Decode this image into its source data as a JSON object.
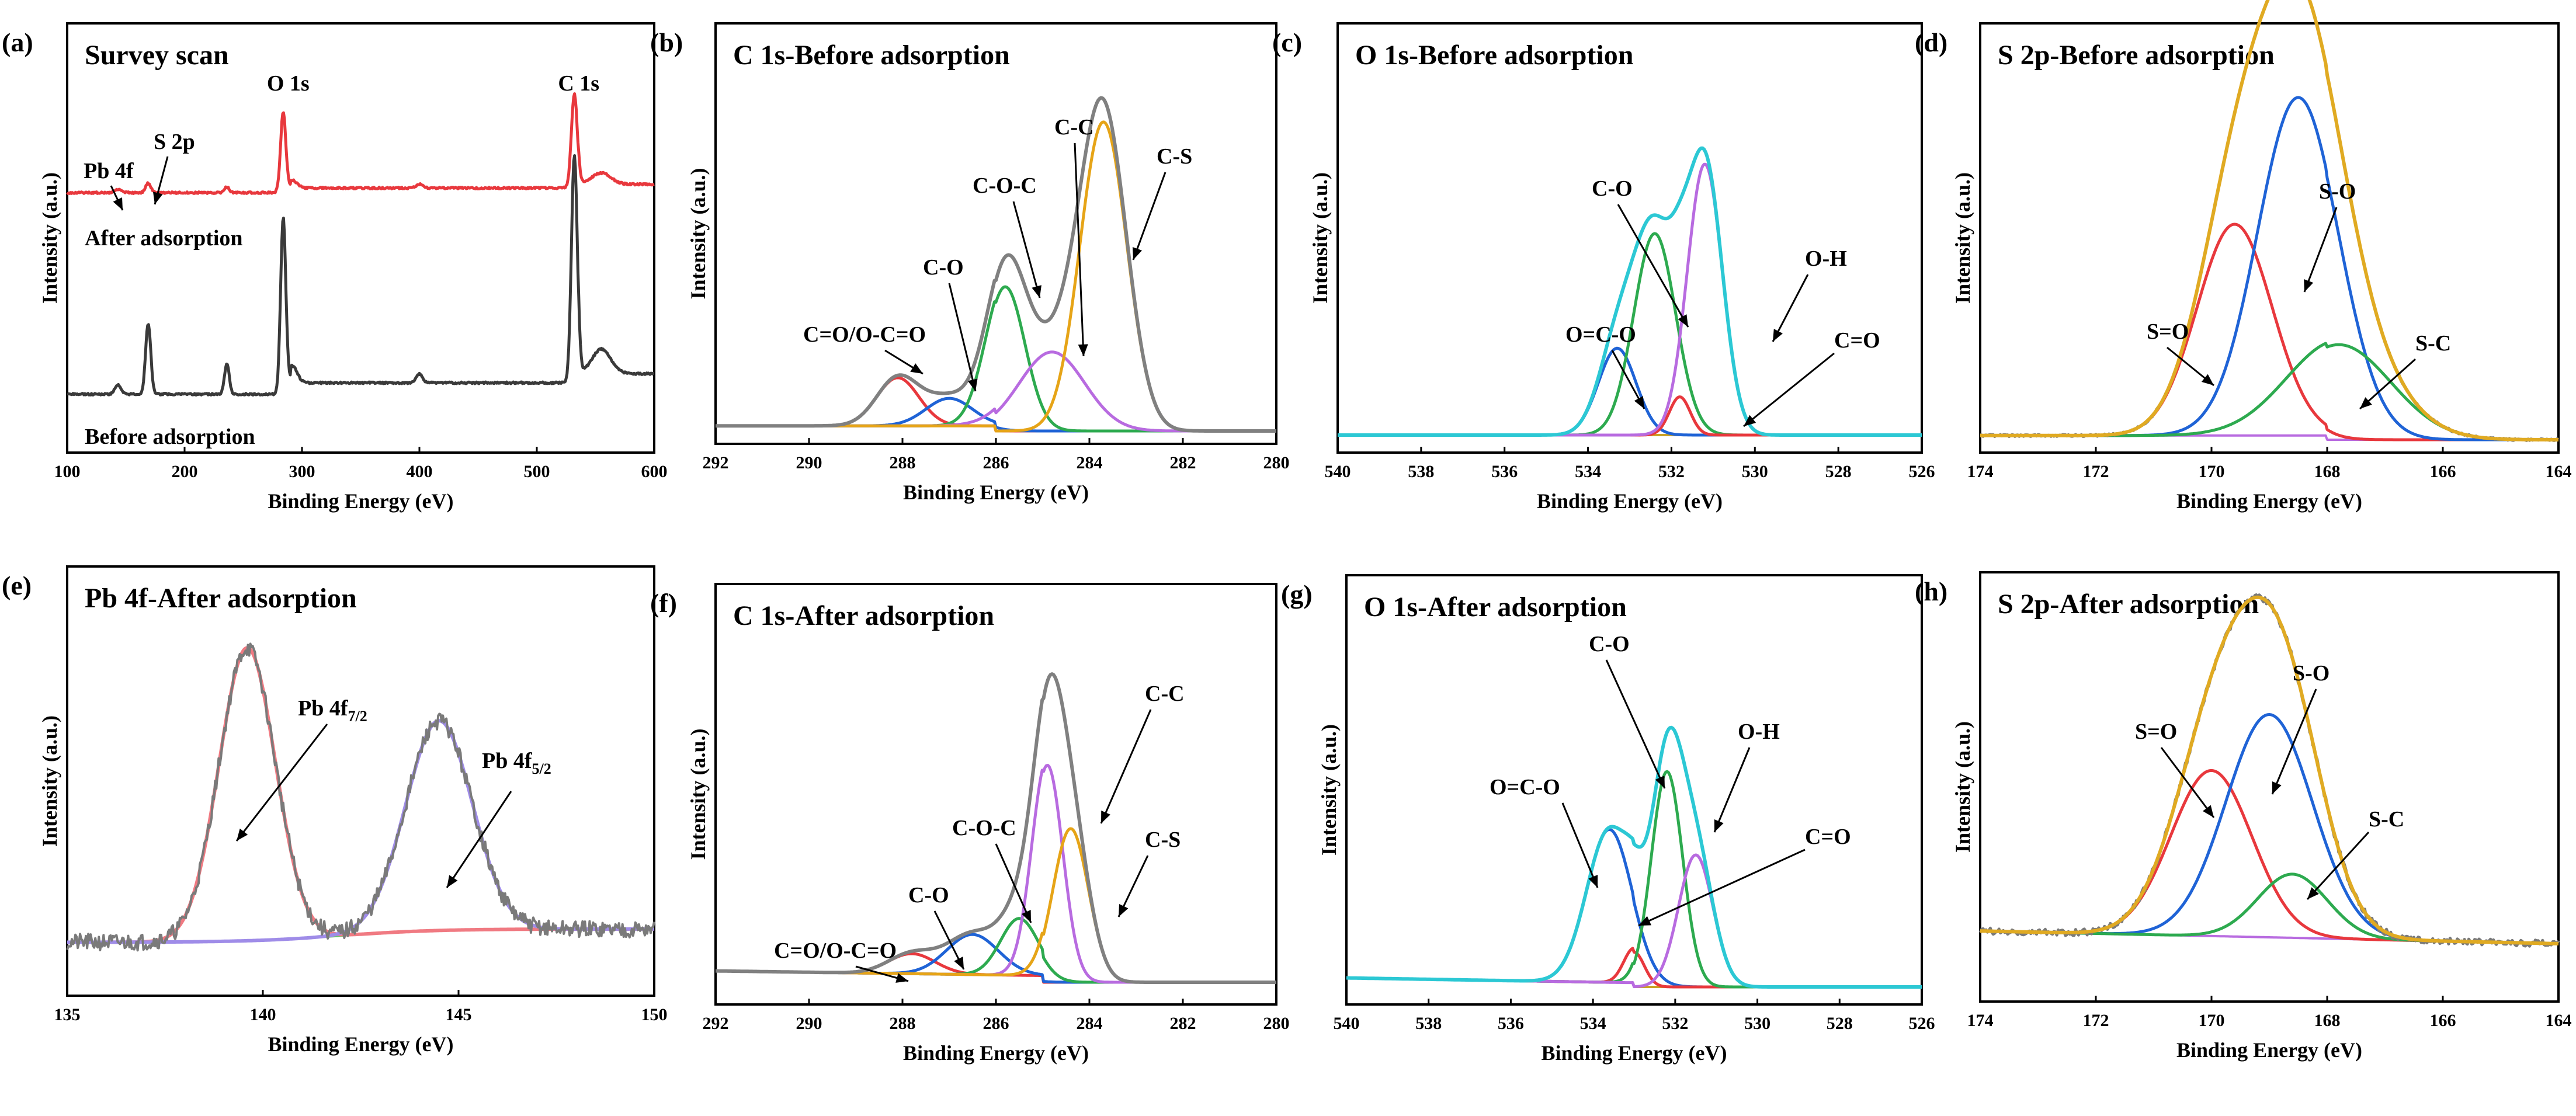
{
  "chart_data": [
    {
      "id": "a",
      "panel_label": "(a)",
      "title": "Survey scan",
      "type": "line",
      "xlabel": "Binding Energy (eV)",
      "ylabel": "Intensity (a.u.)",
      "xlim": [
        100,
        600
      ],
      "xticks": [
        100,
        200,
        300,
        400,
        500,
        600
      ],
      "xticks_text": [
        "100",
        "200",
        "300",
        "400",
        "500",
        "600"
      ],
      "reversed": false,
      "curve_labels": [
        "After adsorption",
        "Before adsorption"
      ],
      "curve_colors": [
        "#e8383d",
        "#3a3a3a"
      ],
      "peaks": [
        {
          "name": "Pb 4f",
          "x": 143
        },
        {
          "name": "S 2p",
          "x": 169
        },
        {
          "name": "O 1s",
          "x": 284
        },
        {
          "name": "C 1s",
          "x": 532
        }
      ],
      "annotations": [
        "Pb 4f",
        "S 2p",
        "O 1s",
        "C 1s"
      ]
    },
    {
      "id": "b",
      "panel_label": "(b)",
      "title": "C 1s-Before adsorption",
      "type": "line",
      "xlabel": "Binding Energy (eV)",
      "ylabel": "Intensity (a.u.)",
      "xlim": [
        292,
        280
      ],
      "xticks": [
        292,
        290,
        288,
        286,
        284,
        282,
        280
      ],
      "xticks_text": [
        "292",
        "290",
        "288",
        "286",
        "284",
        "282",
        "280"
      ],
      "reversed": true,
      "components": [
        {
          "label": "C=O/O-C=O",
          "center": 288.1,
          "height": 0.14,
          "width": 0.45,
          "color": "#e8383d"
        },
        {
          "label": "C-O",
          "center": 287.0,
          "height": 0.08,
          "width": 0.5,
          "color": "#1f63d6"
        },
        {
          "label": "C-O-C",
          "center": 285.8,
          "height": 0.42,
          "width": 0.42,
          "color": "#2daa4f"
        },
        {
          "label": "C-C",
          "center": 284.8,
          "height": 0.23,
          "width": 0.7,
          "color": "#b86be0"
        },
        {
          "label": "C-S",
          "center": 283.7,
          "height": 0.9,
          "width": 0.5,
          "color": "#e6a417"
        }
      ],
      "annotations": [
        "C=O/O-C=O",
        "C-O",
        "C-O-C",
        "C-C",
        "C-S"
      ]
    },
    {
      "id": "c",
      "panel_label": "(c)",
      "title": "O 1s-Before adsorption",
      "type": "line",
      "xlabel": "Binding Energy (eV)",
      "ylabel": "Intensity (a.u.)",
      "xlim": [
        540,
        526
      ],
      "xticks": [
        540,
        538,
        536,
        534,
        532,
        530,
        528,
        526
      ],
      "xticks_text": [
        "540",
        "538",
        "536",
        "534",
        "532",
        "530",
        "528",
        "526"
      ],
      "reversed": true,
      "components": [
        {
          "label": "O=C-O",
          "center": 533.3,
          "height": 0.25,
          "width": 0.45,
          "color": "#1f63d6"
        },
        {
          "label": "C-O",
          "center": 532.4,
          "height": 0.58,
          "width": 0.5,
          "color": "#2daa4f"
        },
        {
          "label": "C=O",
          "center": 531.8,
          "height": 0.11,
          "width": 0.25,
          "color": "#e8383d"
        },
        {
          "label": "O-H",
          "center": 531.2,
          "height": 0.78,
          "width": 0.42,
          "color": "#b86be0"
        }
      ],
      "annotations": [
        "C-O",
        "O-H",
        "O=C-O",
        "C=O"
      ]
    },
    {
      "id": "d",
      "panel_label": "(d)",
      "title": "S 2p-Before adsorption",
      "type": "line",
      "xlabel": "Binding Energy (eV)",
      "ylabel": "Intensity (a.u.)",
      "xlim": [
        174,
        164
      ],
      "xticks": [
        174,
        172,
        170,
        168,
        166,
        164
      ],
      "xticks_text": [
        "174",
        "172",
        "170",
        "168",
        "166",
        "164"
      ],
      "reversed": true,
      "components": [
        {
          "label": "S=O",
          "center": 169.6,
          "height": 0.6,
          "width": 0.65,
          "color": "#e8383d"
        },
        {
          "label": "S-O",
          "center": 168.5,
          "height": 0.96,
          "width": 0.7,
          "color": "#1f63d6"
        },
        {
          "label": "S-C",
          "center": 167.8,
          "height": 0.27,
          "width": 0.9,
          "color": "#2daa4f"
        }
      ],
      "annotations": [
        "S-O",
        "S=O",
        "S-C"
      ]
    },
    {
      "id": "e",
      "panel_label": "(e)",
      "title": "Pb 4f-After adsorption",
      "type": "line",
      "xlabel": "Binding Energy (eV)",
      "ylabel": "Intensity (a.u.)",
      "xlim": [
        135,
        150
      ],
      "xticks": [
        135,
        140,
        145,
        150
      ],
      "xticks_text": [
        "135",
        "140",
        "145",
        "150"
      ],
      "reversed": false,
      "components": [
        {
          "label": "Pb 4f7/2",
          "center": 139.6,
          "height": 0.88,
          "width": 0.72,
          "color": "#f07a82"
        },
        {
          "label": "Pb 4f5/2",
          "center": 144.5,
          "height": 0.63,
          "width": 0.85,
          "color": "#9f8ce8"
        }
      ],
      "annotations_main": [
        "Pb 4f",
        "Pb 4f"
      ],
      "annotations_sub": [
        "7/2",
        "5/2"
      ]
    },
    {
      "id": "f",
      "panel_label": "(f)",
      "title": "C 1s-After adsorption",
      "type": "line",
      "xlabel": "Binding Energy (eV)",
      "ylabel": "Intensity (a.u.)",
      "xlim": [
        292,
        280
      ],
      "xticks": [
        292,
        290,
        288,
        286,
        284,
        282,
        280
      ],
      "xticks_text": [
        "292",
        "290",
        "288",
        "286",
        "284",
        "282",
        "280"
      ],
      "reversed": true,
      "components": [
        {
          "label": "C=O/O-C=O",
          "center": 287.8,
          "height": 0.06,
          "width": 0.5,
          "color": "#e8383d"
        },
        {
          "label": "C-O",
          "center": 286.5,
          "height": 0.12,
          "width": 0.55,
          "color": "#1f63d6"
        },
        {
          "label": "C-O-C",
          "center": 285.5,
          "height": 0.17,
          "width": 0.4,
          "color": "#2daa4f"
        },
        {
          "label": "C-C",
          "center": 284.9,
          "height": 0.65,
          "width": 0.33,
          "color": "#b86be0"
        },
        {
          "label": "C-S",
          "center": 284.4,
          "height": 0.46,
          "width": 0.38,
          "color": "#e6a417"
        }
      ],
      "annotations": [
        "C=O/O-C=O",
        "C-O",
        "C-O-C",
        "C-C",
        "C-S"
      ]
    },
    {
      "id": "g",
      "panel_label": "(g)",
      "title": "O 1s-After adsorption",
      "type": "line",
      "xlabel": "Binding Energy (eV)",
      "ylabel": "Intensity (a.u.)",
      "xlim": [
        540,
        526
      ],
      "xticks": [
        540,
        538,
        536,
        534,
        532,
        530,
        528,
        526
      ],
      "xticks_text": [
        "540",
        "538",
        "536",
        "534",
        "532",
        "530",
        "528",
        "526"
      ],
      "reversed": true,
      "components": [
        {
          "label": "O=C-O",
          "center": 533.6,
          "height": 0.44,
          "width": 0.55,
          "color": "#1f63d6"
        },
        {
          "label": "C=O",
          "center": 533.0,
          "height": 0.1,
          "width": 0.25,
          "color": "#e8383d"
        },
        {
          "label": "C-O",
          "center": 532.2,
          "height": 0.62,
          "width": 0.38,
          "color": "#2daa4f"
        },
        {
          "label": "O-H",
          "center": 531.5,
          "height": 0.38,
          "width": 0.42,
          "color": "#b86be0"
        }
      ],
      "annotations": [
        "C-O",
        "O-H",
        "O=C-O",
        "C=O"
      ]
    },
    {
      "id": "h",
      "panel_label": "(h)",
      "title": "S 2p-After adsorption",
      "type": "line",
      "xlabel": "Binding Energy (eV)",
      "ylabel": "Intensity (a.u.)",
      "xlim": [
        174,
        164
      ],
      "xticks": [
        174,
        172,
        170,
        168,
        166,
        164
      ],
      "xticks_text": [
        "174",
        "172",
        "170",
        "168",
        "166",
        "164"
      ],
      "reversed": true,
      "components": [
        {
          "label": "S=O",
          "center": 170.0,
          "height": 0.52,
          "width": 0.7,
          "color": "#e8383d"
        },
        {
          "label": "S-O",
          "center": 169.0,
          "height": 0.7,
          "width": 0.75,
          "color": "#1f63d6"
        },
        {
          "label": "S-C",
          "center": 168.6,
          "height": 0.2,
          "width": 0.6,
          "color": "#2daa4f"
        }
      ],
      "annotations": [
        "S-O",
        "S=O",
        "S-C"
      ]
    }
  ],
  "colors": {
    "envelope": "#e0aa22",
    "raw": "#7a7a7a",
    "o1s_envelope": "#2cc8d4",
    "c1s_envelope": "#808080",
    "baseline_teal": "#23c3d0",
    "baseline_purple": "#b86be0",
    "baseline_gold": "#c9a125"
  }
}
